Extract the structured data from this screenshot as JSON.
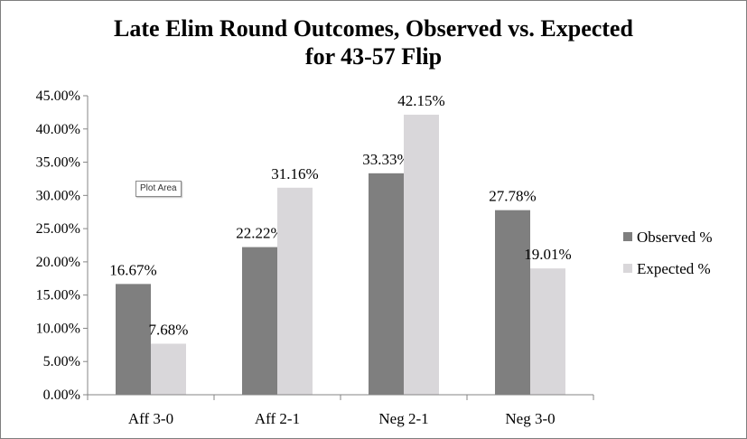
{
  "title_line1": "Late Elim Round Outcomes, Observed vs. Expected",
  "title_line2": "for 43-57 Flip",
  "tooltip": "Plot Area",
  "colors": {
    "observed": "#7f7f7f",
    "expected": "#d9d7da",
    "axis": "#868686"
  },
  "chart_data": {
    "type": "bar",
    "title": "Late Elim Round Outcomes, Observed vs. Expected for 43-57 Flip",
    "categories": [
      "Aff 3-0",
      "Aff 2-1",
      "Neg 2-1",
      "Neg 3-0"
    ],
    "series": [
      {
        "name": "Observed %",
        "values": [
          16.67,
          22.22,
          33.33,
          27.78
        ],
        "labels": [
          "16.67%",
          "22.22%",
          "33.33%",
          "27.78%"
        ]
      },
      {
        "name": "Expected %",
        "values": [
          7.68,
          31.16,
          42.15,
          19.01
        ],
        "labels": [
          "7.68%",
          "31.16%",
          "42.15%",
          "19.01%"
        ]
      }
    ],
    "ylim": [
      0,
      45
    ],
    "yticks": [
      "0.00%",
      "5.00%",
      "10.00%",
      "15.00%",
      "20.00%",
      "25.00%",
      "30.00%",
      "35.00%",
      "40.00%",
      "45.00%"
    ],
    "grid": false,
    "legend_position": "right"
  }
}
